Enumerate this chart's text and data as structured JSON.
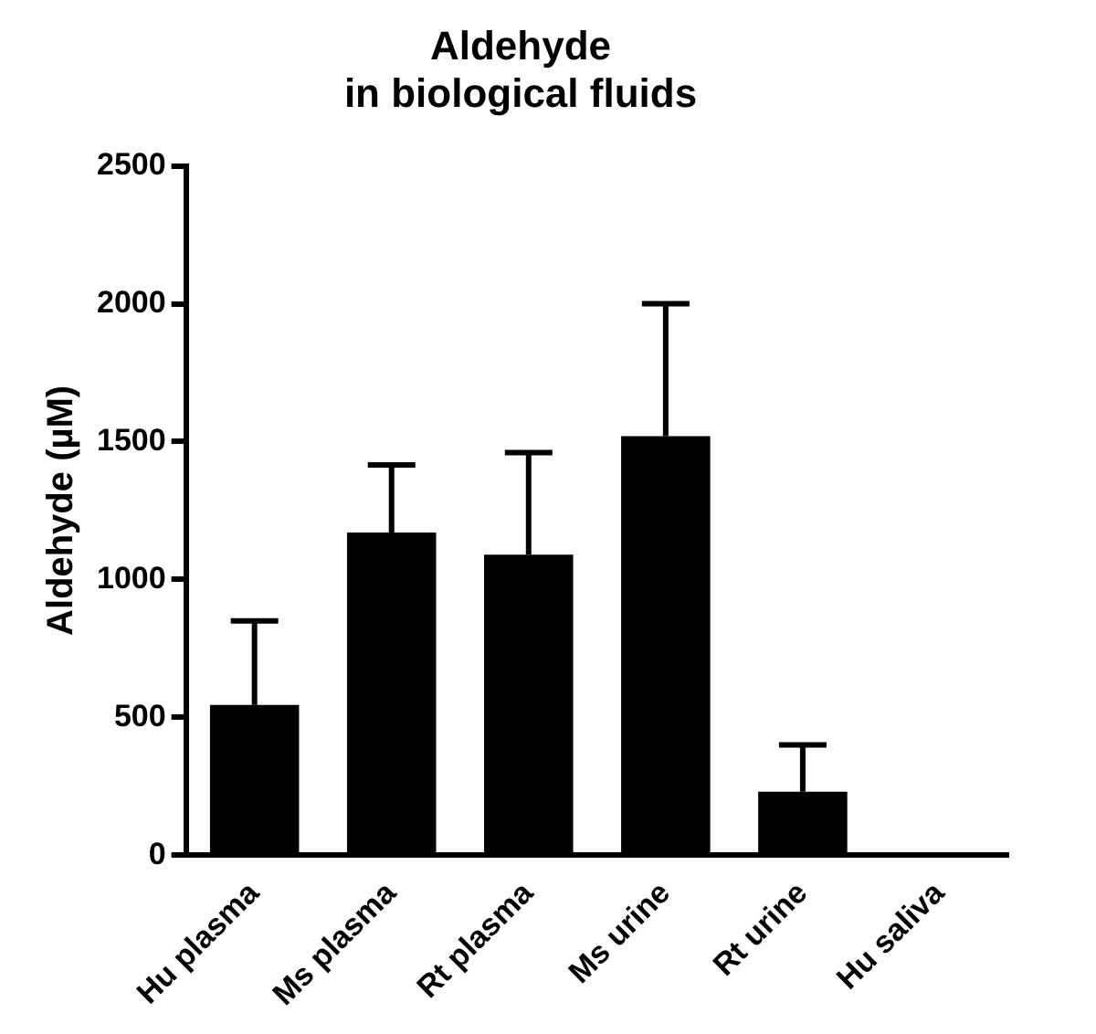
{
  "chart_data": {
    "type": "bar",
    "title": "Aldehyde\nin biological fluids",
    "ylabel": "Aldehyde (µM)",
    "categories": [
      "Hu plasma",
      "Ms plasma",
      "Rt plasma",
      "Ms urine",
      "Rt urine",
      "Hu saliva"
    ],
    "values": [
      545,
      1170,
      1090,
      1520,
      230,
      0
    ],
    "errors": [
      [
        545,
        850
      ],
      [
        1170,
        1415
      ],
      [
        1090,
        1460
      ],
      [
        1520,
        2000
      ],
      [
        230,
        400
      ],
      null
    ],
    "color": "#000000",
    "ylim": [
      0,
      2500
    ],
    "yticks": [
      0,
      500,
      1000,
      1500,
      2000,
      2500
    ],
    "grid": false,
    "legend": false
  }
}
